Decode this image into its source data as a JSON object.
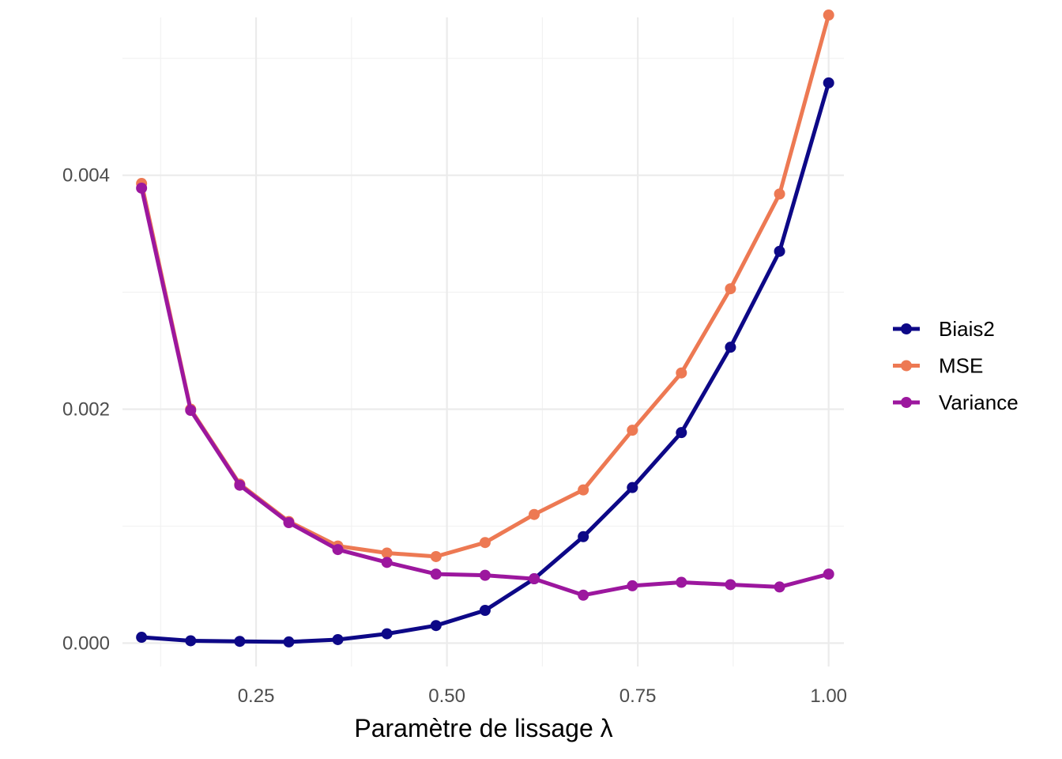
{
  "chart_data": {
    "type": "line",
    "xlabel": "Paramètre de lissage λ",
    "ylabel": "",
    "xlim": [
      0.075,
      1.02
    ],
    "ylim": [
      -0.0002,
      0.00535
    ],
    "x_ticks": [
      0.25,
      0.5,
      0.75,
      1.0
    ],
    "x_tick_labels": [
      "0.25",
      "0.50",
      "0.75",
      "1.00"
    ],
    "y_ticks": [
      0,
      0.002,
      0.004
    ],
    "y_tick_labels": [
      "0.000",
      "0.002",
      "0.004"
    ],
    "grid": true,
    "legend": "right",
    "x": [
      0.1,
      0.1643,
      0.2286,
      0.2929,
      0.3571,
      0.4214,
      0.4857,
      0.55,
      0.6143,
      0.6786,
      0.7429,
      0.8071,
      0.8714,
      0.9357,
      1.0
    ],
    "series": [
      {
        "name": "Biais2",
        "color": "#0d0887",
        "values": [
          5e-05,
          2e-05,
          1.5e-05,
          1e-05,
          3e-05,
          8e-05,
          0.00015,
          0.00028,
          0.00055,
          0.00091,
          0.00133,
          0.0018,
          0.00253,
          0.00335,
          0.00479
        ]
      },
      {
        "name": "MSE",
        "color": "#ed7953",
        "values": [
          0.00393,
          0.002,
          0.00136,
          0.00104,
          0.00083,
          0.00077,
          0.00074,
          0.00086,
          0.0011,
          0.00131,
          0.00182,
          0.00231,
          0.00303,
          0.00384,
          0.00537
        ]
      },
      {
        "name": "Variance",
        "color": "#9c179e",
        "values": [
          0.00389,
          0.00199,
          0.00135,
          0.00103,
          0.0008,
          0.00069,
          0.00059,
          0.00058,
          0.00055,
          0.00041,
          0.00049,
          0.00052,
          0.0005,
          0.00048,
          0.00059
        ]
      }
    ]
  }
}
